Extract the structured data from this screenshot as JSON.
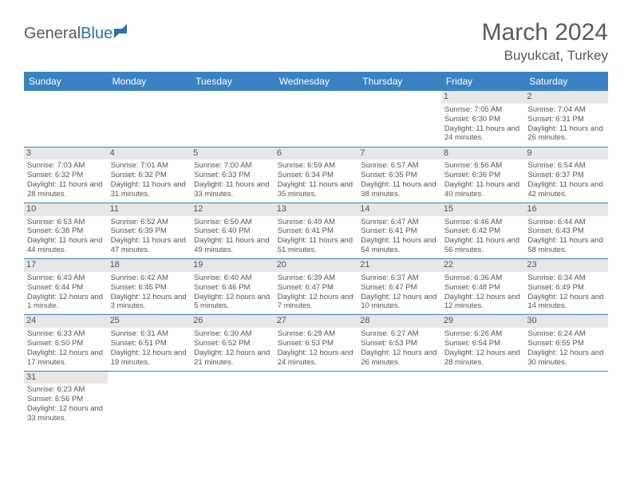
{
  "brand": {
    "text1": "General",
    "text2": "Blue"
  },
  "title": {
    "month": "March 2024",
    "location": "Buyukcat, Turkey"
  },
  "colors": {
    "header_bg": "#3b82c4",
    "header_fg": "#ffffff",
    "border": "#3b82c4",
    "daynum_bg": "#e7e7e7",
    "logo_blue": "#2f71b3"
  },
  "weekdays": [
    "Sunday",
    "Monday",
    "Tuesday",
    "Wednesday",
    "Thursday",
    "Friday",
    "Saturday"
  ],
  "weeks": [
    [
      {
        "n": "",
        "lines": []
      },
      {
        "n": "",
        "lines": []
      },
      {
        "n": "",
        "lines": []
      },
      {
        "n": "",
        "lines": []
      },
      {
        "n": "",
        "lines": []
      },
      {
        "n": "1",
        "lines": [
          "Sunrise: 7:05 AM",
          "Sunset: 6:30 PM",
          "Daylight: 11 hours and 24 minutes."
        ]
      },
      {
        "n": "2",
        "lines": [
          "Sunrise: 7:04 AM",
          "Sunset: 6:31 PM",
          "Daylight: 11 hours and 26 minutes."
        ]
      }
    ],
    [
      {
        "n": "3",
        "lines": [
          "Sunrise: 7:03 AM",
          "Sunset: 6:32 PM",
          "Daylight: 11 hours and 28 minutes."
        ]
      },
      {
        "n": "4",
        "lines": [
          "Sunrise: 7:01 AM",
          "Sunset: 6:32 PM",
          "Daylight: 11 hours and 31 minutes."
        ]
      },
      {
        "n": "5",
        "lines": [
          "Sunrise: 7:00 AM",
          "Sunset: 6:33 PM",
          "Daylight: 11 hours and 33 minutes."
        ]
      },
      {
        "n": "6",
        "lines": [
          "Sunrise: 6:59 AM",
          "Sunset: 6:34 PM",
          "Daylight: 11 hours and 35 minutes."
        ]
      },
      {
        "n": "7",
        "lines": [
          "Sunrise: 6:57 AM",
          "Sunset: 6:35 PM",
          "Daylight: 11 hours and 38 minutes."
        ]
      },
      {
        "n": "8",
        "lines": [
          "Sunrise: 6:56 AM",
          "Sunset: 6:36 PM",
          "Daylight: 11 hours and 40 minutes."
        ]
      },
      {
        "n": "9",
        "lines": [
          "Sunrise: 6:54 AM",
          "Sunset: 6:37 PM",
          "Daylight: 11 hours and 42 minutes."
        ]
      }
    ],
    [
      {
        "n": "10",
        "lines": [
          "Sunrise: 6:53 AM",
          "Sunset: 6:38 PM",
          "Daylight: 11 hours and 44 minutes."
        ]
      },
      {
        "n": "11",
        "lines": [
          "Sunrise: 6:52 AM",
          "Sunset: 6:39 PM",
          "Daylight: 11 hours and 47 minutes."
        ]
      },
      {
        "n": "12",
        "lines": [
          "Sunrise: 6:50 AM",
          "Sunset: 6:40 PM",
          "Daylight: 11 hours and 49 minutes."
        ]
      },
      {
        "n": "13",
        "lines": [
          "Sunrise: 6:49 AM",
          "Sunset: 6:41 PM",
          "Daylight: 11 hours and 51 minutes."
        ]
      },
      {
        "n": "14",
        "lines": [
          "Sunrise: 6:47 AM",
          "Sunset: 6:41 PM",
          "Daylight: 11 hours and 54 minutes."
        ]
      },
      {
        "n": "15",
        "lines": [
          "Sunrise: 6:46 AM",
          "Sunset: 6:42 PM",
          "Daylight: 11 hours and 56 minutes."
        ]
      },
      {
        "n": "16",
        "lines": [
          "Sunrise: 6:44 AM",
          "Sunset: 6:43 PM",
          "Daylight: 11 hours and 58 minutes."
        ]
      }
    ],
    [
      {
        "n": "17",
        "lines": [
          "Sunrise: 6:43 AM",
          "Sunset: 6:44 PM",
          "Daylight: 12 hours and 1 minute."
        ]
      },
      {
        "n": "18",
        "lines": [
          "Sunrise: 6:42 AM",
          "Sunset: 6:45 PM",
          "Daylight: 12 hours and 3 minutes."
        ]
      },
      {
        "n": "19",
        "lines": [
          "Sunrise: 6:40 AM",
          "Sunset: 6:46 PM",
          "Daylight: 12 hours and 5 minutes."
        ]
      },
      {
        "n": "20",
        "lines": [
          "Sunrise: 6:39 AM",
          "Sunset: 6:47 PM",
          "Daylight: 12 hours and 7 minutes."
        ]
      },
      {
        "n": "21",
        "lines": [
          "Sunrise: 6:37 AM",
          "Sunset: 6:47 PM",
          "Daylight: 12 hours and 10 minutes."
        ]
      },
      {
        "n": "22",
        "lines": [
          "Sunrise: 6:36 AM",
          "Sunset: 6:48 PM",
          "Daylight: 12 hours and 12 minutes."
        ]
      },
      {
        "n": "23",
        "lines": [
          "Sunrise: 6:34 AM",
          "Sunset: 6:49 PM",
          "Daylight: 12 hours and 14 minutes."
        ]
      }
    ],
    [
      {
        "n": "24",
        "lines": [
          "Sunrise: 6:33 AM",
          "Sunset: 6:50 PM",
          "Daylight: 12 hours and 17 minutes."
        ]
      },
      {
        "n": "25",
        "lines": [
          "Sunrise: 6:31 AM",
          "Sunset: 6:51 PM",
          "Daylight: 12 hours and 19 minutes."
        ]
      },
      {
        "n": "26",
        "lines": [
          "Sunrise: 6:30 AM",
          "Sunset: 6:52 PM",
          "Daylight: 12 hours and 21 minutes."
        ]
      },
      {
        "n": "27",
        "lines": [
          "Sunrise: 6:28 AM",
          "Sunset: 6:53 PM",
          "Daylight: 12 hours and 24 minutes."
        ]
      },
      {
        "n": "28",
        "lines": [
          "Sunrise: 6:27 AM",
          "Sunset: 6:53 PM",
          "Daylight: 12 hours and 26 minutes."
        ]
      },
      {
        "n": "29",
        "lines": [
          "Sunrise: 6:26 AM",
          "Sunset: 6:54 PM",
          "Daylight: 12 hours and 28 minutes."
        ]
      },
      {
        "n": "30",
        "lines": [
          "Sunrise: 6:24 AM",
          "Sunset: 6:55 PM",
          "Daylight: 12 hours and 30 minutes."
        ]
      }
    ],
    [
      {
        "n": "31",
        "lines": [
          "Sunrise: 6:23 AM",
          "Sunset: 6:56 PM",
          "Daylight: 12 hours and 33 minutes."
        ]
      },
      {
        "n": "",
        "lines": []
      },
      {
        "n": "",
        "lines": []
      },
      {
        "n": "",
        "lines": []
      },
      {
        "n": "",
        "lines": []
      },
      {
        "n": "",
        "lines": []
      },
      {
        "n": "",
        "lines": []
      }
    ]
  ]
}
